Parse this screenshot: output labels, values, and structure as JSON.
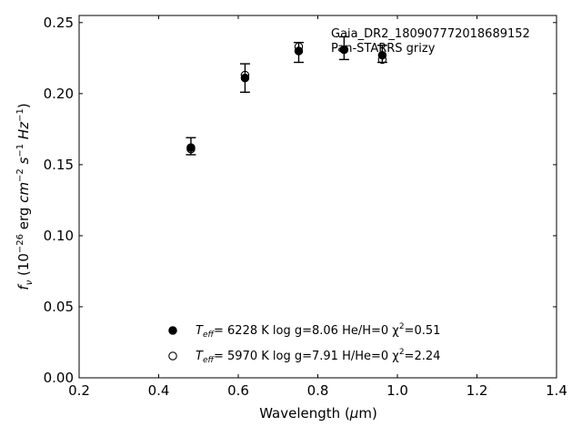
{
  "chart_data": {
    "type": "scatter",
    "xlabel": "Wavelength (μm)",
    "ylabel": "f_ν (10^−26 erg cm^−2 s^−1 Hz^−1)",
    "xlim": [
      0.2,
      1.4
    ],
    "ylim": [
      0.0,
      0.255
    ],
    "x_ticks": [
      0.2,
      0.4,
      0.6,
      0.8,
      1.0,
      1.2,
      1.4
    ],
    "x_tick_labels": [
      "0.2",
      "0.4",
      "0.6",
      "0.8",
      "1.0",
      "1.2",
      "1.4"
    ],
    "y_ticks": [
      0.0,
      0.05,
      0.1,
      0.15,
      0.2,
      0.25
    ],
    "y_tick_labels": [
      "0.00",
      "0.05",
      "0.10",
      "0.15",
      "0.20",
      "0.25"
    ],
    "grid": false,
    "annotation": [
      "Gaia_DR2_180907772018689152",
      "Pan-STARRS grizy"
    ],
    "observed": {
      "x": [
        0.481,
        0.617,
        0.752,
        0.866,
        0.962
      ],
      "y": [
        0.163,
        0.211,
        0.229,
        0.232,
        0.228
      ],
      "yerr": [
        0.006,
        0.01,
        0.007,
        0.008,
        0.006
      ]
    },
    "series": [
      {
        "label_parts": {
          "teff_sym": "T",
          "teff_sub": "eff",
          "rest": "=  6228 K  log g=8.06  He/H=0  χ",
          "chi_sup": "2",
          "chi_val": "=0.51"
        },
        "marker": "filled",
        "x": [
          0.481,
          0.617,
          0.752,
          0.866,
          0.962
        ],
        "y": [
          0.162,
          0.211,
          0.23,
          0.231,
          0.227
        ]
      },
      {
        "label_parts": {
          "teff_sym": "T",
          "teff_sub": "eff",
          "rest": "=  5970 K  log g=7.91  H/He=0  χ",
          "chi_sup": "2",
          "chi_val": "=2.24"
        },
        "marker": "open",
        "x": [
          0.481,
          0.617,
          0.752,
          0.866,
          0.962
        ],
        "y": [
          0.161,
          0.213,
          0.233,
          0.231,
          0.224
        ]
      }
    ],
    "legend_position": "lower-center"
  }
}
